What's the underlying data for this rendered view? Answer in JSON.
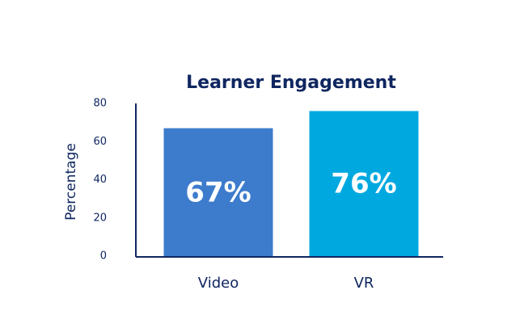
{
  "chart_data": {
    "type": "bar",
    "title": "Learner Engagement",
    "y_label": "Percentage",
    "categories": [
      "Video",
      "VR"
    ],
    "values": [
      67,
      76
    ],
    "value_labels": [
      "67%",
      "76%"
    ],
    "colors": [
      "#3d7ccc",
      "#00a8e0"
    ],
    "ylim": [
      0,
      80
    ],
    "yticks": [
      0,
      20,
      40,
      60,
      80
    ],
    "grid": false
  }
}
